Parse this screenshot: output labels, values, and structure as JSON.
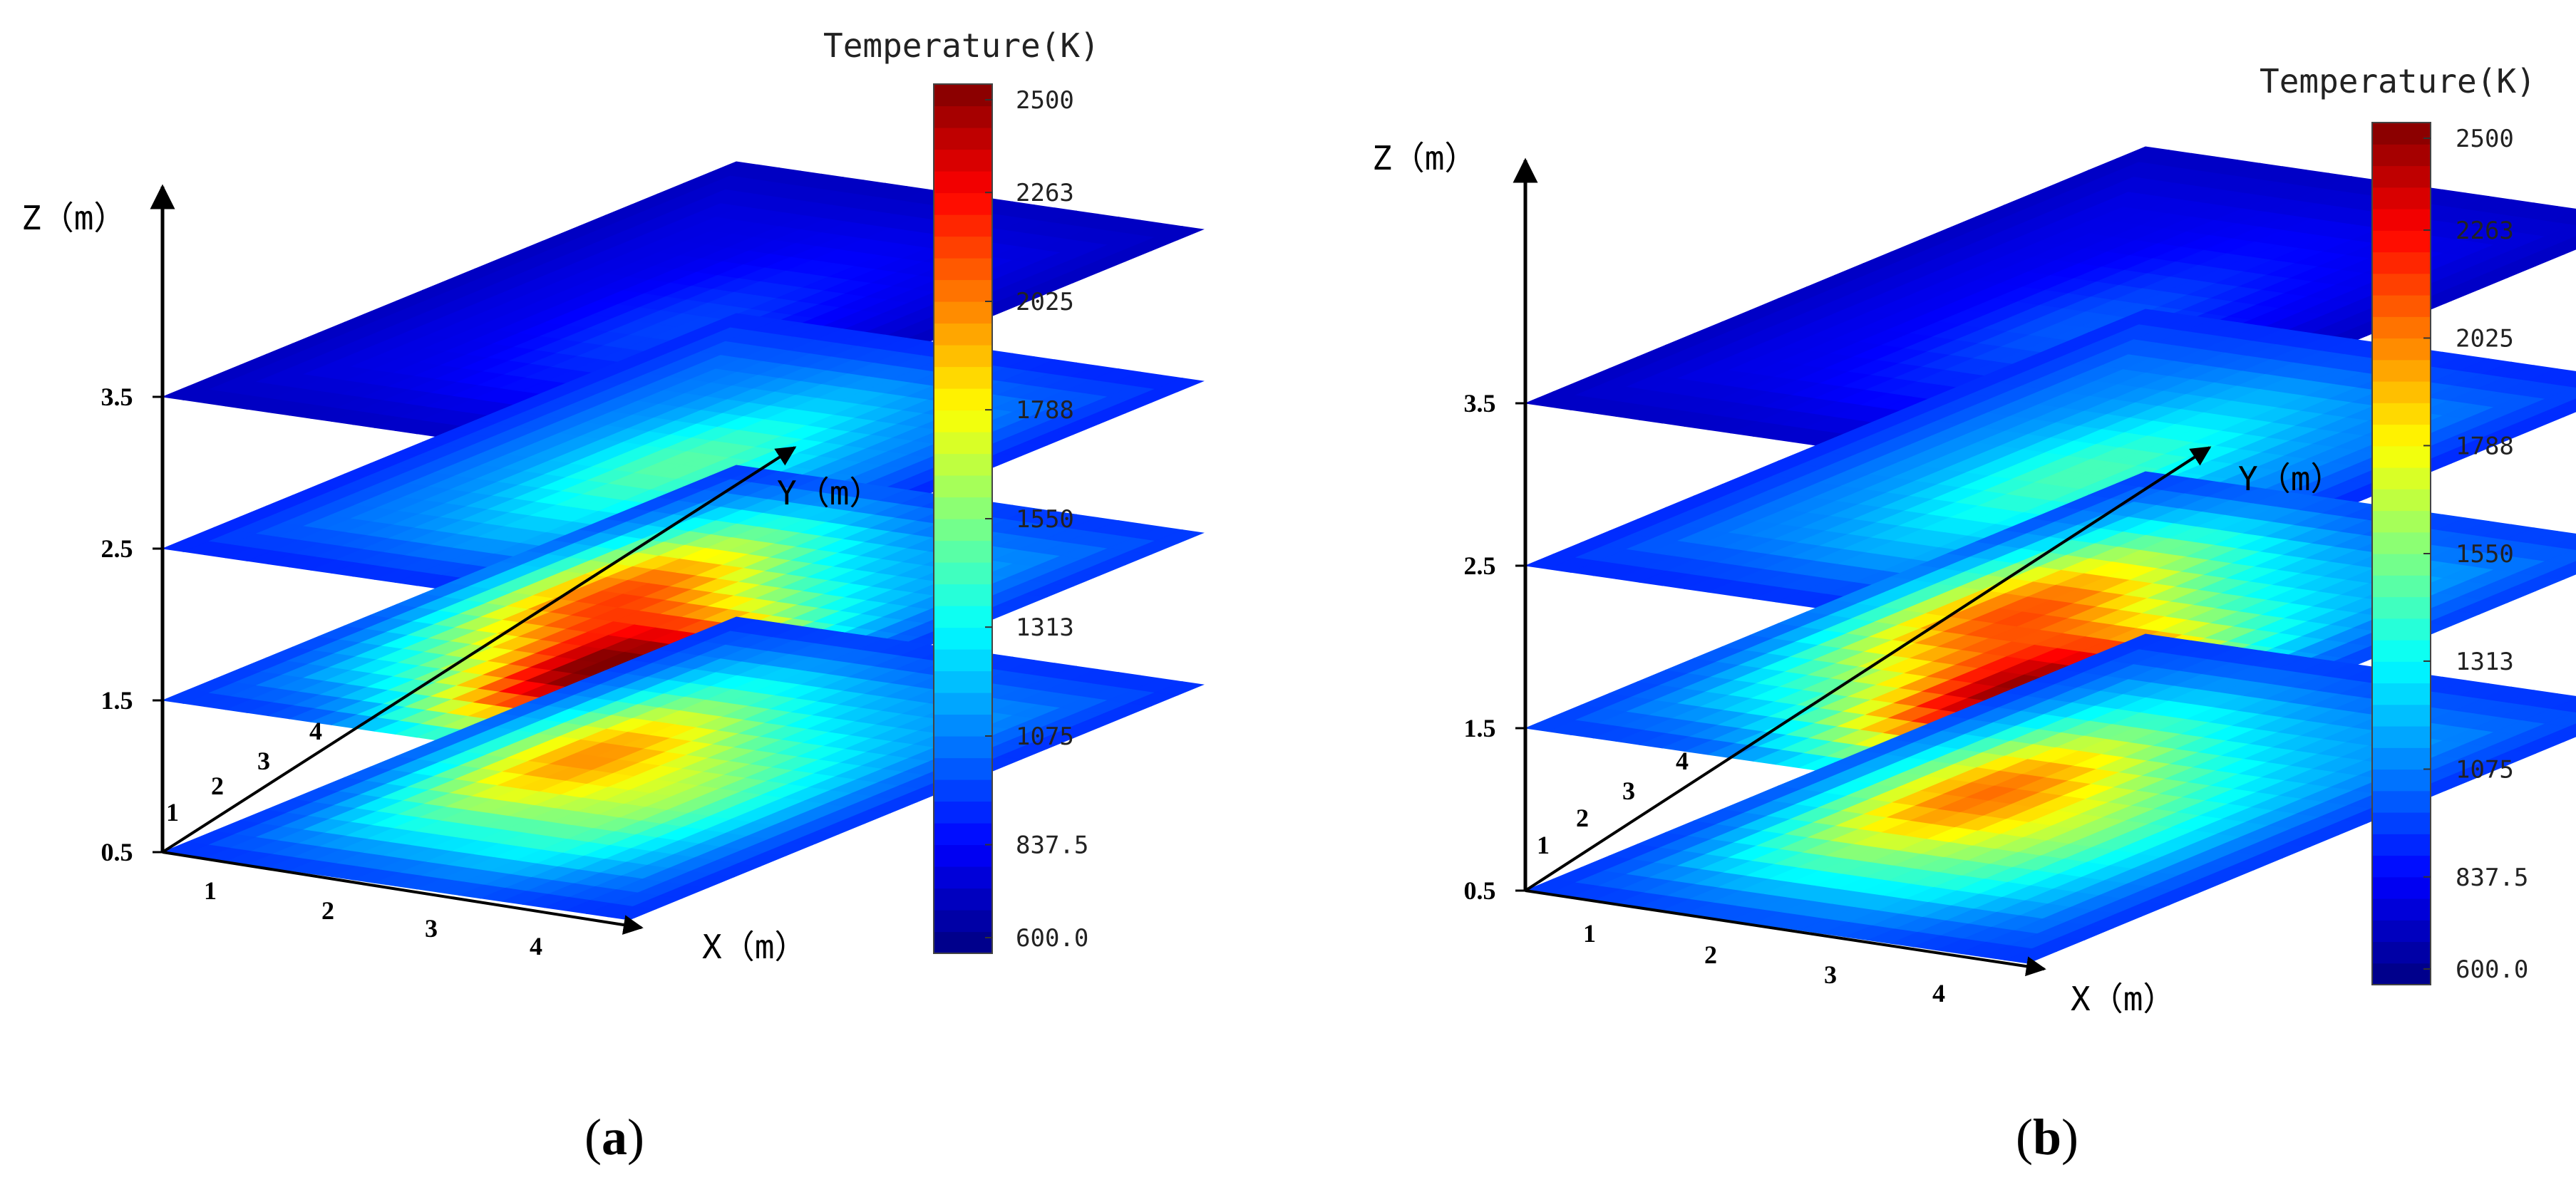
{
  "chart_data": [
    {
      "type": "heatmap",
      "panel_label": "a",
      "xlabel": "X（m）",
      "ylabel": "Y（m）",
      "zlabel": "Z（m）",
      "x_ticks": [
        "1",
        "2",
        "3",
        "4"
      ],
      "y_ticks": [
        "1",
        "2",
        "3",
        "4"
      ],
      "z_ticks": [
        "0.5",
        "1.5",
        "2.5",
        "3.5"
      ],
      "colorbar": {
        "title": "Temperature(K)",
        "min": 600.0,
        "max": 2500,
        "ticks": [
          "2500",
          "2263",
          "2025",
          "1788",
          "1550",
          "1313",
          "1075",
          "837.5",
          "600.0"
        ]
      },
      "slices": [
        {
          "z": 3.5,
          "base": 780,
          "hotspots": [
            {
              "x": 0.55,
              "y": 0.45,
              "peak": 960
            }
          ]
        },
        {
          "z": 2.5,
          "base": 1050,
          "hotspots": [
            {
              "x": 0.5,
              "y": 0.5,
              "peak": 1480
            }
          ]
        },
        {
          "z": 1.5,
          "base": 1100,
          "hotspots": [
            {
              "x": 0.3,
              "y": 0.55,
              "peak": 2050
            },
            {
              "x": 0.58,
              "y": 0.3,
              "peak": 2480
            }
          ]
        },
        {
          "z": 0.5,
          "base": 1080,
          "hotspots": [
            {
              "x": 0.3,
              "y": 0.5,
              "peak": 1950
            },
            {
              "x": 0.6,
              "y": 0.4,
              "peak": 1560
            }
          ]
        }
      ]
    },
    {
      "type": "heatmap",
      "panel_label": "b",
      "xlabel": "X（m）",
      "ylabel": "Y（m）",
      "zlabel": "Z（m）",
      "x_ticks": [
        "1",
        "2",
        "3",
        "4"
      ],
      "y_ticks": [
        "1",
        "2",
        "3",
        "4"
      ],
      "z_ticks": [
        "0.5",
        "1.5",
        "2.5",
        "3.5"
      ],
      "colorbar": {
        "title": "Temperature(K)",
        "min": 600.0,
        "max": 2500,
        "ticks": [
          "2500",
          "2263",
          "2025",
          "1788",
          "1550",
          "1313",
          "1075",
          "837.5",
          "600.0"
        ]
      },
      "slices": [
        {
          "z": 3.5,
          "base": 790,
          "hotspots": [
            {
              "x": 0.55,
              "y": 0.45,
              "peak": 1000
            }
          ]
        },
        {
          "z": 2.5,
          "base": 1060,
          "hotspots": [
            {
              "x": 0.5,
              "y": 0.5,
              "peak": 1450
            }
          ]
        },
        {
          "z": 1.5,
          "base": 1120,
          "hotspots": [
            {
              "x": 0.3,
              "y": 0.55,
              "peak": 2050
            },
            {
              "x": 0.6,
              "y": 0.32,
              "peak": 2420
            }
          ]
        },
        {
          "z": 0.5,
          "base": 1090,
          "hotspots": [
            {
              "x": 0.32,
              "y": 0.48,
              "peak": 2000
            },
            {
              "x": 0.6,
              "y": 0.4,
              "peak": 1520
            }
          ]
        }
      ]
    }
  ]
}
